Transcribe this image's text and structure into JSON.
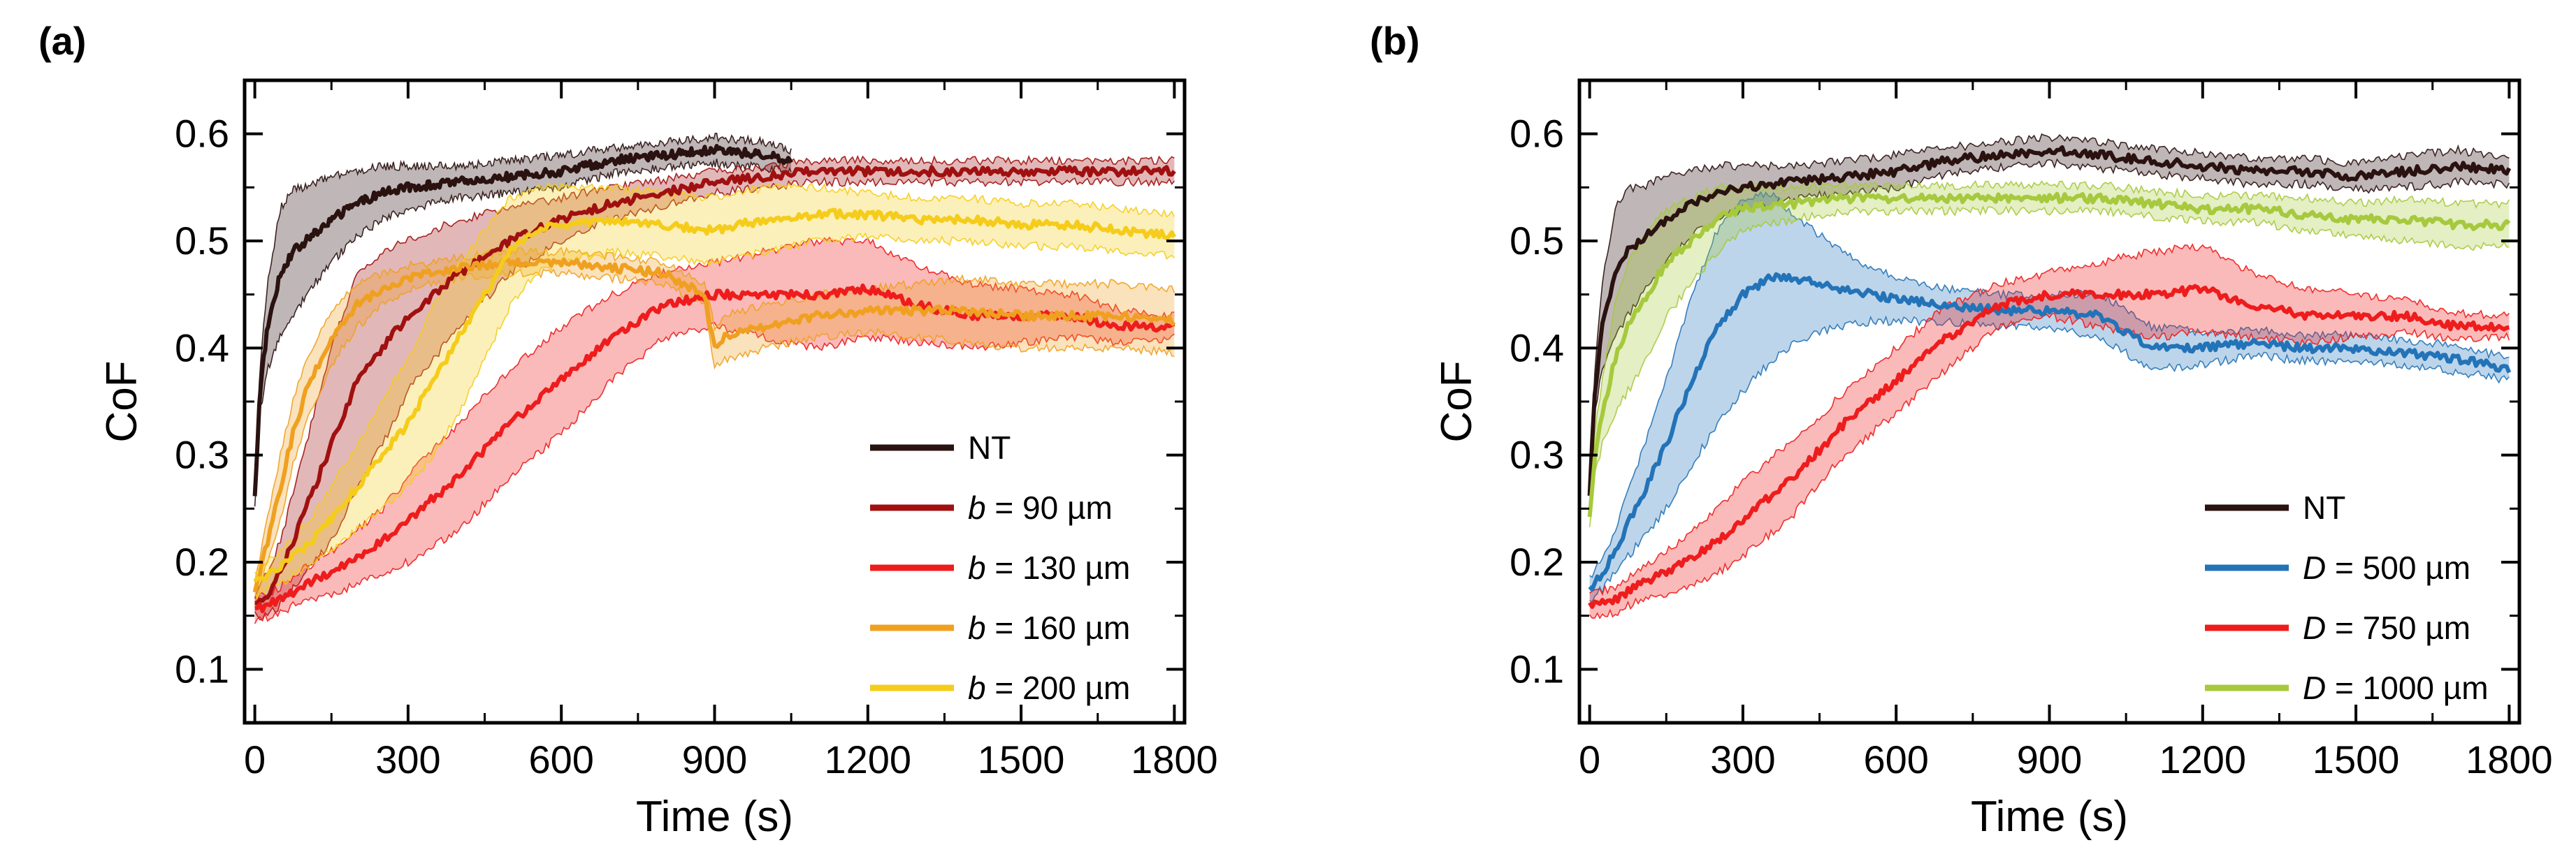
{
  "chart_data": [
    {
      "type": "line",
      "panel_label": "(a)",
      "xlabel": "Time (s)",
      "ylabel": "CoF",
      "xlim": [
        -20,
        1820
      ],
      "ylim": [
        0.05,
        0.65
      ],
      "x_ticks": [
        0,
        300,
        600,
        900,
        1200,
        1500,
        1800
      ],
      "x_tick_labels": [
        "0",
        "300",
        "600",
        "900",
        "1200",
        "1500",
        "1800"
      ],
      "y_ticks": [
        0.1,
        0.2,
        0.3,
        0.4,
        0.5,
        0.6
      ],
      "y_tick_labels": [
        "0.1",
        "0.2",
        "0.3",
        "0.4",
        "0.5",
        "0.6"
      ],
      "legend_position": "bottom-right",
      "series": [
        {
          "name": "NT",
          "legend": {
            "symbol": "",
            "label": "NT"
          },
          "color": "#2a1210",
          "x": [
            0,
            10,
            25,
            50,
            75,
            100,
            150,
            200,
            250,
            300,
            400,
            500,
            600,
            700,
            800,
            900,
            1000,
            1050
          ],
          "y": [
            0.26,
            0.36,
            0.42,
            0.47,
            0.49,
            0.5,
            0.52,
            0.535,
            0.545,
            0.55,
            0.555,
            0.56,
            0.565,
            0.575,
            0.58,
            0.585,
            0.58,
            0.575
          ],
          "band": [
            0.01,
            0.02,
            0.04,
            0.06,
            0.06,
            0.05,
            0.04,
            0.03,
            0.025,
            0.02,
            0.015,
            0.015,
            0.015,
            0.012,
            0.012,
            0.012,
            0.012,
            0.01
          ]
        },
        {
          "name": "b = 90 µm",
          "legend": {
            "symbol": "b",
            "label": " = 90 µm"
          },
          "color": "#a01010",
          "x": [
            0,
            25,
            50,
            100,
            150,
            200,
            250,
            300,
            400,
            500,
            600,
            700,
            800,
            900,
            1000,
            1100,
            1200,
            1300,
            1400,
            1500,
            1600,
            1700,
            1800
          ],
          "y": [
            0.16,
            0.17,
            0.19,
            0.25,
            0.31,
            0.37,
            0.4,
            0.43,
            0.47,
            0.5,
            0.52,
            0.535,
            0.545,
            0.555,
            0.56,
            0.565,
            0.565,
            0.565,
            0.565,
            0.565,
            0.565,
            0.565,
            0.565
          ],
          "band": [
            0.01,
            0.02,
            0.03,
            0.06,
            0.09,
            0.1,
            0.09,
            0.07,
            0.05,
            0.03,
            0.02,
            0.015,
            0.012,
            0.01,
            0.01,
            0.01,
            0.01,
            0.01,
            0.01,
            0.01,
            0.01,
            0.01,
            0.01
          ]
        },
        {
          "name": "b = 130 µm",
          "legend": {
            "symbol": "b",
            "label": " = 130 µm"
          },
          "color": "#ee1c1c",
          "x": [
            0,
            50,
            100,
            150,
            200,
            250,
            300,
            350,
            400,
            450,
            500,
            550,
            600,
            650,
            700,
            750,
            800,
            900,
            1000,
            1100,
            1200,
            1300,
            1400,
            1500,
            1600,
            1700,
            1800
          ],
          "y": [
            0.155,
            0.165,
            0.18,
            0.19,
            0.205,
            0.22,
            0.24,
            0.26,
            0.28,
            0.305,
            0.33,
            0.35,
            0.37,
            0.39,
            0.41,
            0.425,
            0.44,
            0.45,
            0.45,
            0.45,
            0.455,
            0.44,
            0.43,
            0.43,
            0.43,
            0.42,
            0.42
          ],
          "band": [
            0.01,
            0.012,
            0.015,
            0.02,
            0.025,
            0.03,
            0.04,
            0.045,
            0.05,
            0.05,
            0.05,
            0.05,
            0.05,
            0.045,
            0.04,
            0.035,
            0.03,
            0.03,
            0.04,
            0.05,
            0.045,
            0.035,
            0.03,
            0.025,
            0.02,
            0.015,
            0.01
          ]
        },
        {
          "name": "b = 160 µm",
          "legend": {
            "symbol": "b",
            "label": " = 160 µm"
          },
          "color": "#f0a020",
          "x": [
            0,
            25,
            50,
            75,
            100,
            150,
            200,
            250,
            300,
            350,
            400,
            500,
            600,
            700,
            800,
            880,
            900,
            920,
            1000,
            1100,
            1200,
            1300,
            1400,
            1500,
            1600,
            1700,
            1800
          ],
          "y": [
            0.17,
            0.22,
            0.27,
            0.32,
            0.36,
            0.41,
            0.44,
            0.455,
            0.465,
            0.47,
            0.475,
            0.48,
            0.48,
            0.475,
            0.47,
            0.45,
            0.4,
            0.41,
            0.42,
            0.43,
            0.435,
            0.435,
            0.435,
            0.43,
            0.43,
            0.43,
            0.425
          ],
          "band": [
            0.01,
            0.02,
            0.03,
            0.03,
            0.03,
            0.025,
            0.02,
            0.015,
            0.012,
            0.01,
            0.01,
            0.01,
            0.01,
            0.01,
            0.01,
            0.01,
            0.02,
            0.02,
            0.02,
            0.02,
            0.02,
            0.025,
            0.03,
            0.03,
            0.03,
            0.03,
            0.03
          ]
        },
        {
          "name": "b = 200 µm",
          "legend": {
            "symbol": "b",
            "label": " = 200 µm"
          },
          "color": "#f5cc1a",
          "x": [
            0,
            50,
            100,
            150,
            200,
            250,
            300,
            350,
            400,
            450,
            500,
            550,
            600,
            700,
            800,
            900,
            1000,
            1100,
            1200,
            1300,
            1400,
            1500,
            1600,
            1700,
            1800
          ],
          "y": [
            0.18,
            0.195,
            0.215,
            0.24,
            0.27,
            0.3,
            0.33,
            0.37,
            0.41,
            0.45,
            0.49,
            0.51,
            0.515,
            0.52,
            0.515,
            0.51,
            0.52,
            0.525,
            0.525,
            0.52,
            0.52,
            0.515,
            0.515,
            0.51,
            0.505
          ],
          "band": [
            0.01,
            0.015,
            0.02,
            0.03,
            0.04,
            0.05,
            0.06,
            0.07,
            0.07,
            0.06,
            0.05,
            0.04,
            0.035,
            0.03,
            0.03,
            0.03,
            0.03,
            0.025,
            0.02,
            0.02,
            0.02,
            0.02,
            0.02,
            0.02,
            0.02
          ]
        }
      ]
    },
    {
      "type": "line",
      "panel_label": "(b)",
      "xlabel": "Time (s)",
      "ylabel": "CoF",
      "xlim": [
        -20,
        1820
      ],
      "ylim": [
        0.05,
        0.65
      ],
      "x_ticks": [
        0,
        300,
        600,
        900,
        1200,
        1500,
        1800
      ],
      "x_tick_labels": [
        "0",
        "300",
        "600",
        "900",
        "1200",
        "1500",
        "1800"
      ],
      "y_ticks": [
        0.1,
        0.2,
        0.3,
        0.4,
        0.5,
        0.6
      ],
      "y_tick_labels": [
        "0.1",
        "0.2",
        "0.3",
        "0.4",
        "0.5",
        "0.6"
      ],
      "legend_position": "bottom-right",
      "series": [
        {
          "name": "NT",
          "legend": {
            "symbol": "",
            "label": "NT"
          },
          "color": "#2a1210",
          "x": [
            0,
            10,
            25,
            50,
            75,
            100,
            150,
            200,
            250,
            300,
            400,
            500,
            600,
            700,
            800,
            900,
            1000,
            1100,
            1200,
            1300,
            1400,
            1500,
            1600,
            1700,
            1800
          ],
          "y": [
            0.26,
            0.36,
            0.42,
            0.47,
            0.49,
            0.5,
            0.52,
            0.535,
            0.545,
            0.55,
            0.555,
            0.56,
            0.565,
            0.575,
            0.58,
            0.585,
            0.58,
            0.575,
            0.57,
            0.565,
            0.565,
            0.56,
            0.565,
            0.57,
            0.565
          ],
          "band": [
            0.01,
            0.02,
            0.04,
            0.06,
            0.06,
            0.05,
            0.04,
            0.03,
            0.025,
            0.02,
            0.015,
            0.015,
            0.015,
            0.012,
            0.012,
            0.012,
            0.012,
            0.012,
            0.012,
            0.012,
            0.012,
            0.012,
            0.015,
            0.015,
            0.012
          ]
        },
        {
          "name": "D = 500 µm",
          "legend": {
            "symbol": "D",
            "label": " = 500 µm"
          },
          "color": "#2373b8",
          "x": [
            0,
            25,
            50,
            100,
            150,
            200,
            250,
            300,
            350,
            400,
            450,
            500,
            550,
            600,
            700,
            800,
            900,
            1000,
            1100,
            1200,
            1300,
            1400,
            1500,
            1600,
            1700,
            1800
          ],
          "y": [
            0.175,
            0.19,
            0.21,
            0.26,
            0.31,
            0.37,
            0.42,
            0.45,
            0.465,
            0.465,
            0.46,
            0.455,
            0.45,
            0.445,
            0.44,
            0.435,
            0.435,
            0.43,
            0.4,
            0.4,
            0.405,
            0.4,
            0.4,
            0.395,
            0.39,
            0.38
          ],
          "band": [
            0.01,
            0.015,
            0.02,
            0.04,
            0.06,
            0.08,
            0.09,
            0.09,
            0.08,
            0.06,
            0.045,
            0.035,
            0.025,
            0.02,
            0.015,
            0.015,
            0.015,
            0.02,
            0.02,
            0.015,
            0.012,
            0.012,
            0.012,
            0.012,
            0.012,
            0.01
          ]
        },
        {
          "name": "D = 750 µm",
          "legend": {
            "symbol": "D",
            "label": " = 750 µm"
          },
          "color": "#ee1c1c",
          "x": [
            0,
            50,
            100,
            150,
            200,
            250,
            300,
            350,
            400,
            450,
            500,
            550,
            600,
            650,
            700,
            750,
            800,
            900,
            1000,
            1100,
            1200,
            1300,
            1400,
            1500,
            1600,
            1700,
            1800
          ],
          "y": [
            0.16,
            0.165,
            0.18,
            0.19,
            0.205,
            0.22,
            0.24,
            0.26,
            0.28,
            0.305,
            0.33,
            0.35,
            0.37,
            0.39,
            0.41,
            0.425,
            0.44,
            0.45,
            0.45,
            0.45,
            0.455,
            0.44,
            0.43,
            0.43,
            0.43,
            0.42,
            0.42
          ],
          "band": [
            0.01,
            0.012,
            0.015,
            0.02,
            0.025,
            0.03,
            0.035,
            0.035,
            0.035,
            0.03,
            0.03,
            0.03,
            0.03,
            0.03,
            0.03,
            0.025,
            0.02,
            0.02,
            0.03,
            0.04,
            0.04,
            0.03,
            0.025,
            0.02,
            0.015,
            0.012,
            0.01
          ]
        },
        {
          "name": "D = 1000 µm",
          "legend": {
            "symbol": "D",
            "label": " = 1000 µm"
          },
          "color": "#a6c93d",
          "x": [
            0,
            10,
            25,
            50,
            75,
            100,
            150,
            200,
            250,
            300,
            400,
            500,
            600,
            700,
            800,
            900,
            1000,
            1100,
            1200,
            1300,
            1400,
            1500,
            1600,
            1700,
            1800
          ],
          "y": [
            0.24,
            0.3,
            0.34,
            0.39,
            0.42,
            0.44,
            0.48,
            0.5,
            0.52,
            0.53,
            0.535,
            0.54,
            0.54,
            0.54,
            0.54,
            0.54,
            0.54,
            0.535,
            0.53,
            0.53,
            0.525,
            0.52,
            0.52,
            0.515,
            0.515
          ],
          "band": [
            0.01,
            0.02,
            0.03,
            0.05,
            0.06,
            0.06,
            0.05,
            0.04,
            0.03,
            0.02,
            0.015,
            0.012,
            0.012,
            0.012,
            0.012,
            0.012,
            0.012,
            0.012,
            0.012,
            0.012,
            0.015,
            0.015,
            0.02,
            0.02,
            0.02
          ]
        }
      ]
    }
  ]
}
